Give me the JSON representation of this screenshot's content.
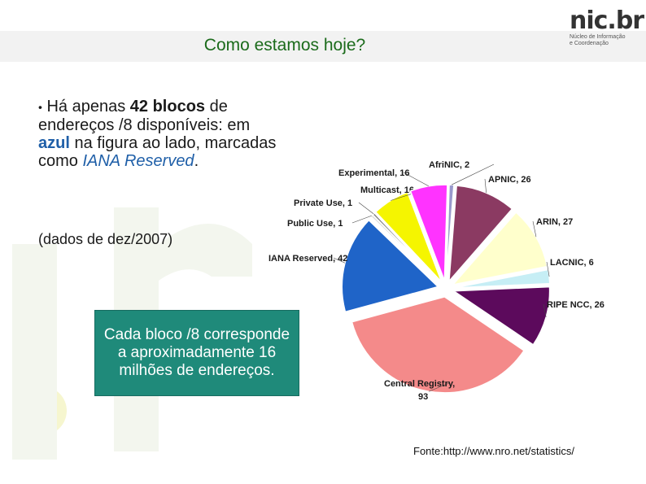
{
  "slide": {
    "title": "Como estamos hoje?",
    "bullet_part1": "Há apenas",
    "bullet_bold": "42 blocos",
    "bullet_part2": "de endereços /8 disponíveis: em",
    "bullet_blue": "azul",
    "bullet_part3": "na figura ao lado, marcadas como",
    "bullet_italic": "IANA Reserved",
    "bullet_end": ".",
    "date_note": "(dados de dez/2007)",
    "box_text": "Cada bloco /8 corresponde a aproximadamente 16 milhões de endereços.",
    "source": "Fonte:http://www.nro.net/statistics/"
  },
  "logo": {
    "main": "nic.br",
    "sub1": "Núcleo de Informação",
    "sub2": "e Coordenação"
  },
  "chart_data": {
    "type": "pie",
    "title": "",
    "slices": [
      {
        "label": "AfriNIC, 2",
        "value": 2,
        "color": "#9999cc"
      },
      {
        "label": "APNIC, 26",
        "value": 26,
        "color": "#8b3a62"
      },
      {
        "label": "ARIN, 27",
        "value": 27,
        "color": "#ffffcc"
      },
      {
        "label": "LACNIC, 6",
        "value": 6,
        "color": "#c6eef5"
      },
      {
        "label": "RIPE NCC, 26",
        "value": 26,
        "color": "#5c0a5c"
      },
      {
        "label": "Central Registry, 93",
        "value": 93,
        "color": "#f48a8a"
      },
      {
        "label": "IANA Reserved, 42",
        "value": 42,
        "color": "#1f64c8"
      },
      {
        "label": "Public Use, 1",
        "value": 1,
        "color": "#dddddd"
      },
      {
        "label": "Private Use, 1",
        "value": 1,
        "color": "#7a7a7a"
      },
      {
        "label": "Multicast, 16",
        "value": 16,
        "color": "#f5f500"
      },
      {
        "label": "Experimental, 16",
        "value": 16,
        "color": "#ff33ff"
      }
    ]
  }
}
